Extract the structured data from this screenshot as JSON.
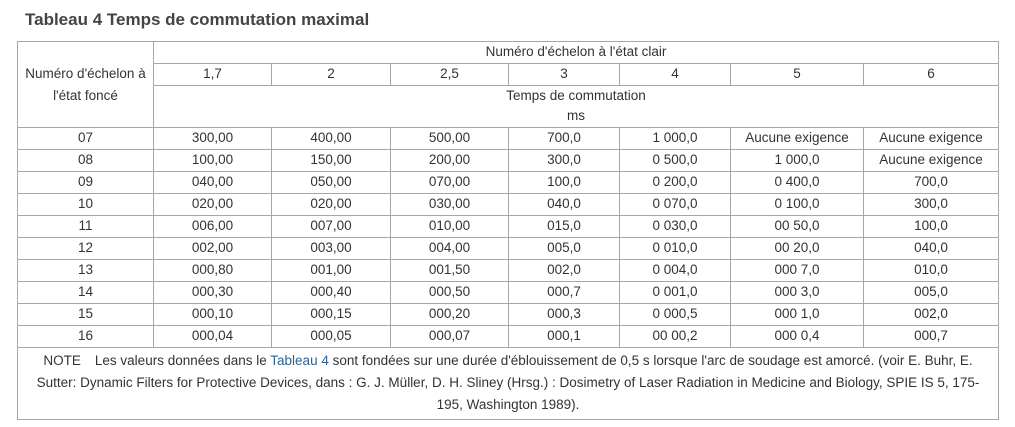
{
  "document": {
    "title": "Tableau 4 Temps de commutation maximal",
    "table": {
      "row_header_label": "Numéro d'échelon à l'état foncé",
      "column_group_label": "Numéro d'échelon à l'état clair",
      "columns": [
        "1,7",
        "2",
        "2,5",
        "3",
        "4",
        "5",
        "6"
      ],
      "value_label": "Temps de commutation",
      "value_unit": "ms",
      "rows": [
        {
          "step": "07",
          "values": [
            "300,00",
            "400,00",
            "500,00",
            "700,0",
            "1 000,0",
            "Aucune exigence",
            "Aucune exigence"
          ]
        },
        {
          "step": "08",
          "values": [
            "100,00",
            "150,00",
            "200,00",
            "300,0",
            "0 500,0",
            "1 000,0",
            "Aucune exigence"
          ]
        },
        {
          "step": "09",
          "values": [
            "040,00",
            "050,00",
            "070,00",
            "100,0",
            "0 200,0",
            "0 400,0",
            "700,0"
          ]
        },
        {
          "step": "10",
          "values": [
            "020,00",
            "020,00",
            "030,00",
            "040,0",
            "0 070,0",
            "0 100,0",
            "300,0"
          ]
        },
        {
          "step": "11",
          "values": [
            "006,00",
            "007,00",
            "010,00",
            "015,0",
            "0 030,0",
            "00 50,0",
            "100,0"
          ]
        },
        {
          "step": "12",
          "values": [
            "002,00",
            "003,00",
            "004,00",
            "005,0",
            "0 010,0",
            "00 20,0",
            "040,0"
          ]
        },
        {
          "step": "13",
          "values": [
            "000,80",
            "001,00",
            "001,50",
            "002,0",
            "0 004,0",
            "000 7,0",
            "010,0"
          ]
        },
        {
          "step": "14",
          "values": [
            "000,30",
            "000,40",
            "000,50",
            "000,7",
            "0 001,0",
            "000 3,0",
            "005,0"
          ]
        },
        {
          "step": "15",
          "values": [
            "000,10",
            "000,15",
            "000,20",
            "000,3",
            "0 000,5",
            "000 1,0",
            "002,0"
          ]
        },
        {
          "step": "16",
          "values": [
            "000,04",
            "000,05",
            "000,07",
            "000,1",
            "00 00,2",
            "000 0,4",
            "000,7"
          ]
        }
      ],
      "note": {
        "prefix": "NOTE",
        "text_before_link": "Les valeurs données dans le ",
        "link_text": "Tableau 4",
        "text_after_link": " sont fondées sur une durée d'éblouissement de 0,5 s lorsque l'arc de soudage est amorcé. (voir E. Buhr, E. Sutter: Dynamic Filters for Protective Devices, dans : G. J. Müller, D. H. Sliney (Hrsg.) : Dosimetry of Laser Radiation in Medicine and Biology, SPIE IS 5, 175-195, Washington 1989)."
      }
    }
  }
}
